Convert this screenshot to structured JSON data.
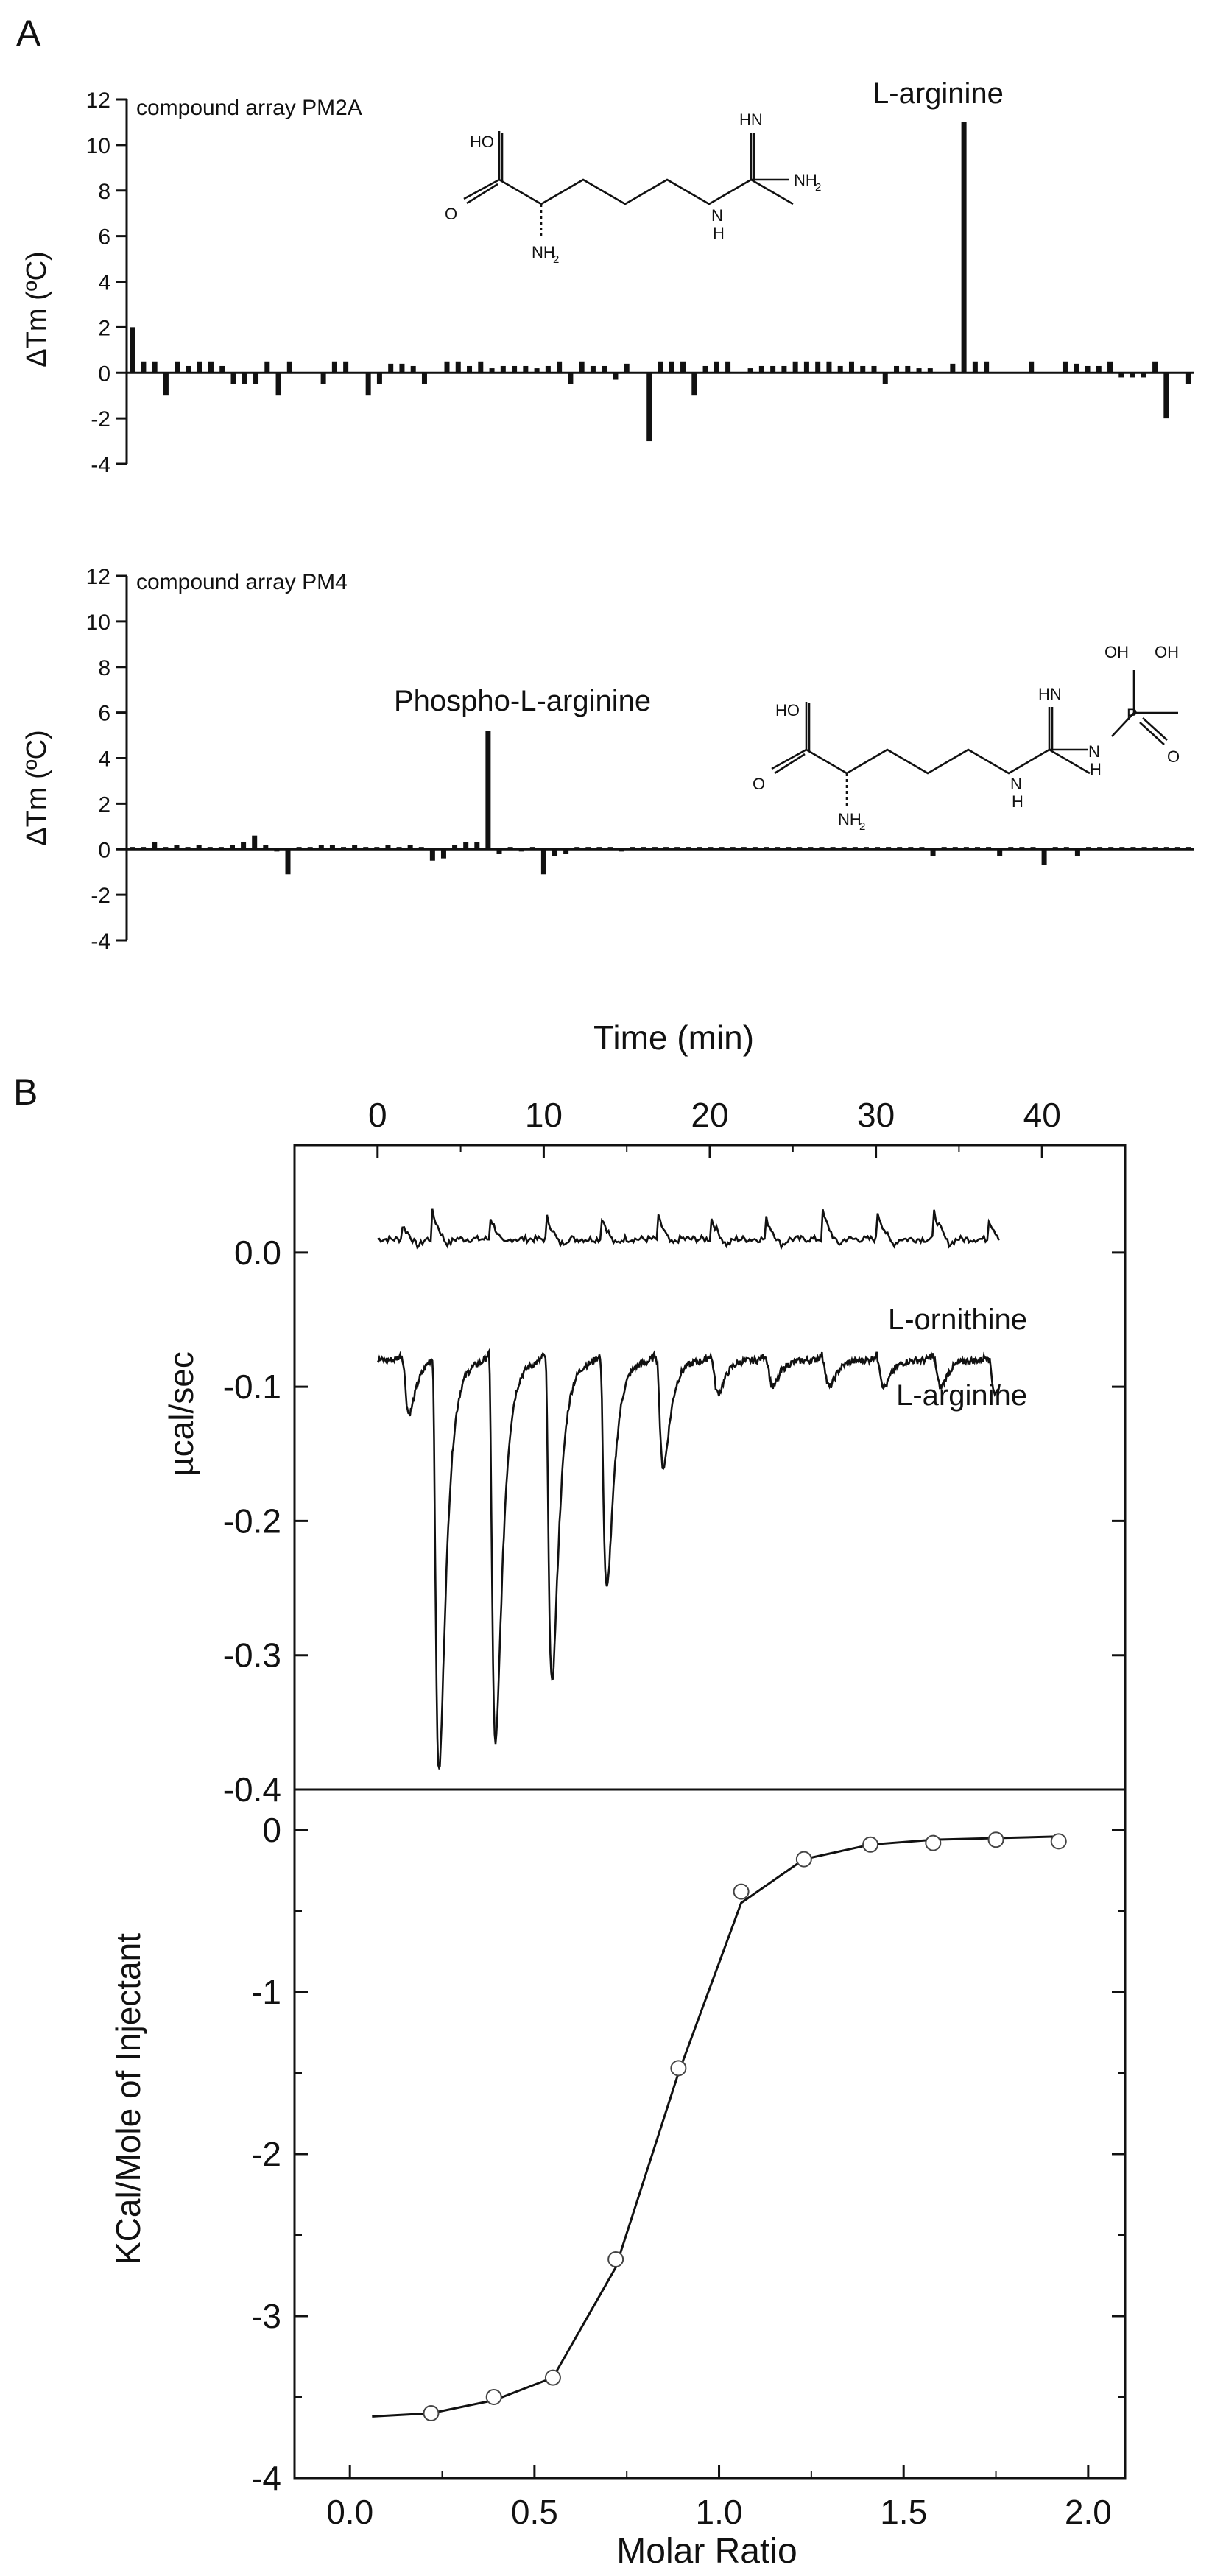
{
  "panel_labels": [
    "A",
    "B"
  ],
  "chart_data": [
    {
      "type": "bar",
      "id": "pm2a",
      "annotation": "compound array PM2A",
      "ylabel": "ΔTm (ºC)",
      "ylim": [
        -4,
        12
      ],
      "yticks": [
        -4,
        -2,
        0,
        2,
        4,
        6,
        8,
        10,
        12
      ],
      "peak_label": "L-arginine",
      "values": [
        2,
        0.5,
        0.5,
        -1,
        0.5,
        0.3,
        0.5,
        0.5,
        0.3,
        -0.5,
        -0.5,
        -0.5,
        0.5,
        -1,
        0.5,
        0,
        0,
        -0.5,
        0.5,
        0.5,
        0,
        -1,
        -0.5,
        0.4,
        0.4,
        0.3,
        -0.5,
        0,
        0.5,
        0.5,
        0.3,
        0.5,
        0.2,
        0.3,
        0.3,
        0.3,
        0.2,
        0.3,
        0.5,
        -0.5,
        0.5,
        0.3,
        0.3,
        -0.3,
        0.4,
        0,
        -3,
        0.5,
        0.5,
        0.5,
        -1,
        0.3,
        0.5,
        0.5,
        0,
        0.2,
        0.3,
        0.3,
        0.3,
        0.5,
        0.5,
        0.5,
        0.5,
        0.3,
        0.5,
        0.3,
        0.3,
        -0.5,
        0.3,
        0.3,
        0.2,
        0.2,
        0,
        0.4,
        11,
        0.5,
        0.5,
        0,
        0,
        0,
        0.5,
        0,
        0,
        0.5,
        0.4,
        0.3,
        0.3,
        0.5,
        -0.2,
        -0.2,
        -0.2,
        0.5,
        -2,
        0,
        -0.5
      ]
    },
    {
      "type": "bar",
      "id": "pm4",
      "annotation": "compound array PM4",
      "ylabel": "ΔTm (ºC)",
      "xlabel": "Time (min)",
      "ylim": [
        -4,
        12
      ],
      "yticks": [
        -4,
        -2,
        0,
        2,
        4,
        6,
        8,
        10,
        12
      ],
      "peak_label": "Phospho-L-arginine",
      "values": [
        0.1,
        0.1,
        0.3,
        0.1,
        0.2,
        0.1,
        0.2,
        0.1,
        0.1,
        0.2,
        0.3,
        0.6,
        0.2,
        -0.1,
        -1.1,
        0.1,
        0.1,
        0.2,
        0.2,
        0.1,
        0.2,
        0.1,
        0.1,
        0.2,
        0.1,
        0.2,
        0.1,
        -0.5,
        -0.4,
        0.2,
        0.3,
        0.3,
        5.2,
        -0.2,
        0.1,
        -0.1,
        0.1,
        -1.1,
        -0.3,
        -0.2,
        0.1,
        0.1,
        0.1,
        0.1,
        -0.1,
        0.1,
        0.1,
        0.1,
        0.1,
        0.1,
        0.1,
        0.1,
        0.1,
        0.1,
        0.1,
        0.1,
        0.1,
        0.1,
        0.1,
        0.1,
        0.1,
        0.1,
        0.1,
        0.1,
        0.1,
        0.1,
        0.1,
        0.1,
        0.1,
        0.1,
        0.1,
        0.1,
        -0.3,
        0.1,
        0.1,
        0.1,
        0.1,
        0.1,
        -0.3,
        0.1,
        0.1,
        0.1,
        -0.7,
        0.1,
        0.1,
        -0.3,
        0.1,
        0.1,
        0.1,
        0.1,
        0.1,
        0.1,
        0.1,
        0.1,
        0.1,
        0.1
      ]
    },
    {
      "type": "line",
      "id": "itc_raw",
      "ylabel": "µcal/sec",
      "xlim": [
        -5,
        45
      ],
      "xticks": [
        0,
        10,
        20,
        30,
        40
      ],
      "ylim": [
        -0.4,
        0.08
      ],
      "yticks": [
        0.0,
        -0.1,
        -0.2,
        -0.3,
        -0.4
      ],
      "ytick_labels": [
        "0.0",
        "-0.1",
        "-0.2",
        "-0.3",
        "-0.4"
      ],
      "injection_times_min": [
        1.5,
        3.3,
        6.7,
        10.1,
        13.4,
        16.8,
        20.1,
        23.4,
        26.8,
        30.1,
        33.5,
        36.8
      ],
      "series": [
        {
          "name": "L-ornithine",
          "baseline": 0.01,
          "peak_heights": [
            0.01,
            0.02,
            0.02,
            0.02,
            0.02,
            0.02,
            0.015,
            0.015,
            0.02,
            0.02,
            0.02,
            0.015
          ]
        },
        {
          "name": "L-arginine",
          "baseline": -0.08,
          "peak_depths": [
            -0.12,
            -0.385,
            -0.365,
            -0.32,
            -0.25,
            -0.16,
            -0.105,
            -0.1,
            -0.1,
            -0.1,
            -0.1,
            -0.105
          ]
        }
      ]
    },
    {
      "type": "scatter",
      "id": "itc_isotherm",
      "xlabel": "Molar Ratio",
      "ylabel": "KCal/Mole of Injectant",
      "xlim": [
        -0.15,
        2.1
      ],
      "xticks": [
        0.0,
        0.5,
        1.0,
        1.5,
        2.0
      ],
      "xtick_labels": [
        "0.0",
        "0.5",
        "1.0",
        "1.5",
        "2.0"
      ],
      "ylim": [
        -4,
        0.25
      ],
      "yticks": [
        0,
        -1,
        -2,
        -3,
        -4
      ],
      "points": {
        "x": [
          0.22,
          0.39,
          0.55,
          0.72,
          0.89,
          1.06,
          1.23,
          1.41,
          1.58,
          1.75,
          1.92
        ],
        "y": [
          -3.6,
          -3.5,
          -3.38,
          -2.65,
          -1.47,
          -0.38,
          -0.18,
          -0.09,
          -0.08,
          -0.06,
          -0.07
        ]
      },
      "fit": {
        "x": [
          0.06,
          0.22,
          0.39,
          0.55,
          0.72,
          0.89,
          1.06,
          1.23,
          1.41,
          1.58,
          1.75,
          1.92
        ],
        "y": [
          -3.62,
          -3.6,
          -3.52,
          -3.38,
          -2.7,
          -1.5,
          -0.45,
          -0.18,
          -0.09,
          -0.06,
          -0.05,
          -0.04
        ]
      }
    }
  ]
}
